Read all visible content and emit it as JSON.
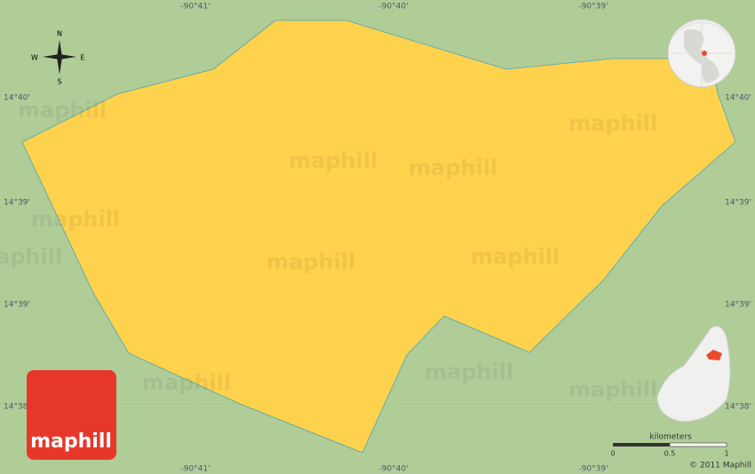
{
  "map": {
    "top_labels": [
      "-90°41'",
      "-90°40'",
      "-90°39'"
    ],
    "bottom_labels": [
      "-90°41'",
      "-90°40'",
      "-90°39'"
    ],
    "left_labels": [
      "14°40'",
      "14°39'",
      "14°39'",
      "14°38'"
    ],
    "right_labels": [
      "14°40'",
      "14°39'",
      "14°39'",
      "14°38'"
    ],
    "compass": {
      "n": "N",
      "e": "E",
      "s": "S",
      "w": "W"
    },
    "watermarks": [
      "maphill",
      "maphill",
      "maphill",
      "maphill",
      "maphill",
      "maphill",
      "maphill",
      "maphill",
      "maphill",
      "maphill",
      "maphill"
    ],
    "logo": "maphill",
    "scale": {
      "title": "kilometers",
      "ticks": [
        0,
        0.5,
        1
      ]
    },
    "copyright": "© 2011 Maphill"
  }
}
